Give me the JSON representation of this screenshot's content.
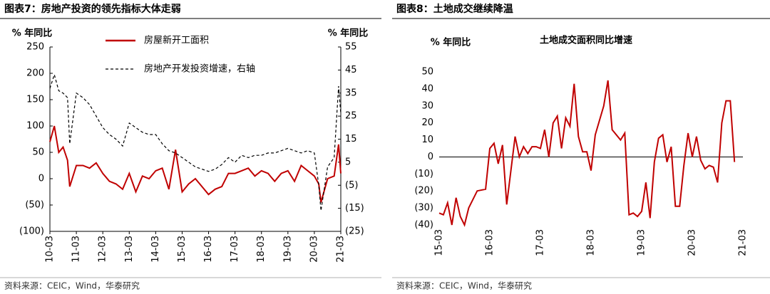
{
  "chart_data": [
    {
      "type": "line",
      "title": "图表7：房地产投资的领先指标大体走弱",
      "ylabel": "% 年同比",
      "y2label": "% 年同比",
      "source": "资料来源：CEIC，Wind，华泰研究",
      "x": [
        0,
        2,
        4,
        6,
        8,
        9,
        12,
        15,
        18,
        21,
        24,
        27,
        30,
        33,
        36,
        39,
        42,
        45,
        48,
        51,
        54,
        57,
        60,
        63,
        66,
        69,
        72,
        75,
        78,
        81,
        84,
        87,
        90,
        93,
        96,
        99,
        102,
        105,
        108,
        111,
        114,
        117,
        120,
        122,
        123,
        126,
        129,
        131,
        132
      ],
      "xlim": [
        0,
        132
      ],
      "xticks": [
        {
          "value": 0,
          "label": "10-03"
        },
        {
          "value": 12,
          "label": "11-03"
        },
        {
          "value": 24,
          "label": "12-03"
        },
        {
          "value": 36,
          "label": "13-03"
        },
        {
          "value": 48,
          "label": "14-03"
        },
        {
          "value": 60,
          "label": "15-03"
        },
        {
          "value": 72,
          "label": "16-03"
        },
        {
          "value": 84,
          "label": "17-03"
        },
        {
          "value": 96,
          "label": "18-03"
        },
        {
          "value": 108,
          "label": "19-03"
        },
        {
          "value": 120,
          "label": "20-03"
        },
        {
          "value": 132,
          "label": "21-03"
        }
      ],
      "ylim": [
        -100,
        250
      ],
      "yticks": [
        {
          "value": -100,
          "label": "(100)"
        },
        {
          "value": -50,
          "label": "(50)"
        },
        0,
        50,
        100,
        150,
        200,
        250
      ],
      "y2lim": [
        -25,
        55
      ],
      "y2ticks": [
        {
          "value": -25,
          "label": "(25)"
        },
        {
          "value": -15,
          "label": "(15)"
        },
        {
          "value": -5,
          "label": "(5)"
        },
        5,
        15,
        25,
        35,
        45,
        55
      ],
      "series": [
        {
          "name": "房屋新开工面积",
          "color": "#c00000",
          "dash": false,
          "values": [
            70,
            100,
            50,
            60,
            35,
            -15,
            25,
            25,
            20,
            30,
            10,
            -5,
            -10,
            -20,
            10,
            -25,
            5,
            0,
            15,
            20,
            -20,
            55,
            -25,
            -10,
            0,
            -15,
            -30,
            -20,
            -15,
            10,
            10,
            15,
            20,
            5,
            15,
            10,
            -5,
            10,
            15,
            -5,
            25,
            15,
            5,
            -10,
            -45,
            0,
            5,
            65,
            10
          ]
        },
        {
          "name": "房地产开发投资增速，右轴",
          "color": "#000000",
          "dash": true,
          "axis": "y2",
          "values": [
            37,
            43,
            36,
            35,
            33,
            13,
            35,
            33,
            30,
            25,
            20,
            17,
            15,
            12,
            22,
            20,
            18,
            17,
            17,
            13,
            10,
            9,
            7,
            5,
            3,
            2,
            1,
            2,
            4,
            7,
            5,
            8,
            7,
            8,
            8,
            9,
            9,
            10,
            11,
            10,
            9,
            10,
            9,
            -5,
            -16,
            3,
            7,
            38,
            26
          ]
        }
      ]
    },
    {
      "type": "line",
      "title": "图表8：土地成交继续降温",
      "subtitle": "土地成交面积同比增速",
      "ylabel": "% 年同比",
      "source": "资料来源：CEIC，Wind，华泰研究",
      "x": [
        0,
        1,
        2,
        3,
        4,
        5,
        6,
        7,
        9,
        11,
        12,
        13,
        14,
        15,
        16,
        18,
        19,
        20,
        21,
        22,
        23,
        24,
        25,
        26,
        27,
        28,
        29,
        30,
        31,
        32,
        33,
        34,
        35,
        36,
        37,
        39,
        40,
        41,
        43,
        44,
        45,
        46,
        47,
        48,
        49,
        50,
        51,
        52,
        53,
        54,
        55,
        56,
        57,
        58,
        59,
        60,
        61,
        62,
        63,
        64,
        65,
        66,
        67,
        68,
        69,
        70
      ],
      "xlim": [
        0,
        72
      ],
      "xticks": [
        {
          "value": 0,
          "label": "15-03"
        },
        {
          "value": 12,
          "label": "16-03"
        },
        {
          "value": 24,
          "label": "17-03"
        },
        {
          "value": 36,
          "label": "18-03"
        },
        {
          "value": 48,
          "label": "19-03"
        },
        {
          "value": 60,
          "label": "20-03"
        },
        {
          "value": 72,
          "label": "21-03"
        }
      ],
      "ylim": [
        -40,
        50
      ],
      "yticks": [
        {
          "value": -40,
          "label": "(40)"
        },
        {
          "value": -30,
          "label": "(30)"
        },
        {
          "value": -20,
          "label": "(20)"
        },
        {
          "value": -10,
          "label": "(10)"
        },
        0,
        10,
        20,
        30,
        40,
        50
      ],
      "series": [
        {
          "name": null,
          "color": "#c00000",
          "dash": false,
          "values": [
            -33,
            -34,
            -27,
            -40,
            -24,
            -35,
            -40,
            -30,
            -20,
            -19,
            5,
            8,
            -4,
            7,
            -28,
            12,
            0,
            6,
            2,
            6,
            6,
            5,
            16,
            0,
            20,
            24,
            5,
            23,
            18,
            43,
            12,
            3,
            3,
            -8,
            13,
            30,
            45,
            16,
            10,
            14,
            -34,
            -33,
            -35,
            -32,
            -15,
            -36,
            -3,
            11,
            13,
            -3,
            6,
            -29,
            -29,
            -5,
            14,
            0,
            12,
            -2,
            -7,
            -5,
            -6,
            -15,
            20,
            33,
            33,
            -3
          ]
        }
      ]
    }
  ]
}
